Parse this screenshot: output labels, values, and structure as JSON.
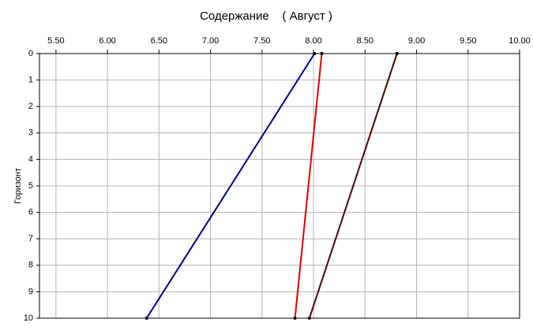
{
  "chart_data": {
    "type": "line",
    "title": "Содержание    ( Август )",
    "y_label": "Горизонт",
    "y": [
      0,
      10
    ],
    "series": [
      {
        "color": "#000080",
        "values": [
          8.01,
          6.38
        ]
      },
      {
        "color": "#e00000",
        "values": [
          8.08,
          7.82
        ]
      },
      {
        "color": "#500000",
        "values": [
          8.81,
          7.96
        ]
      }
    ],
    "xlim": [
      5.34,
      10.0
    ],
    "xticks": [
      {
        "value": 5.5,
        "label": "5.50"
      },
      {
        "value": 6.0,
        "label": "6.00"
      },
      {
        "value": 6.5,
        "label": "6.50"
      },
      {
        "value": 7.0,
        "label": "7.00"
      },
      {
        "value": 7.5,
        "label": "7.50"
      },
      {
        "value": 8.0,
        "label": "8.00"
      },
      {
        "value": 8.5,
        "label": "8.50"
      },
      {
        "value": 9.0,
        "label": "9.00"
      },
      {
        "value": 9.5,
        "label": "9.50"
      },
      {
        "value": 10.0,
        "label": "10.00"
      }
    ],
    "ylim": [
      0,
      10
    ],
    "yticks": [
      0,
      1,
      2,
      3,
      4,
      5,
      6,
      7,
      8,
      9,
      10
    ],
    "y_inverted": true,
    "x_axis_position": "top",
    "grid": true
  }
}
